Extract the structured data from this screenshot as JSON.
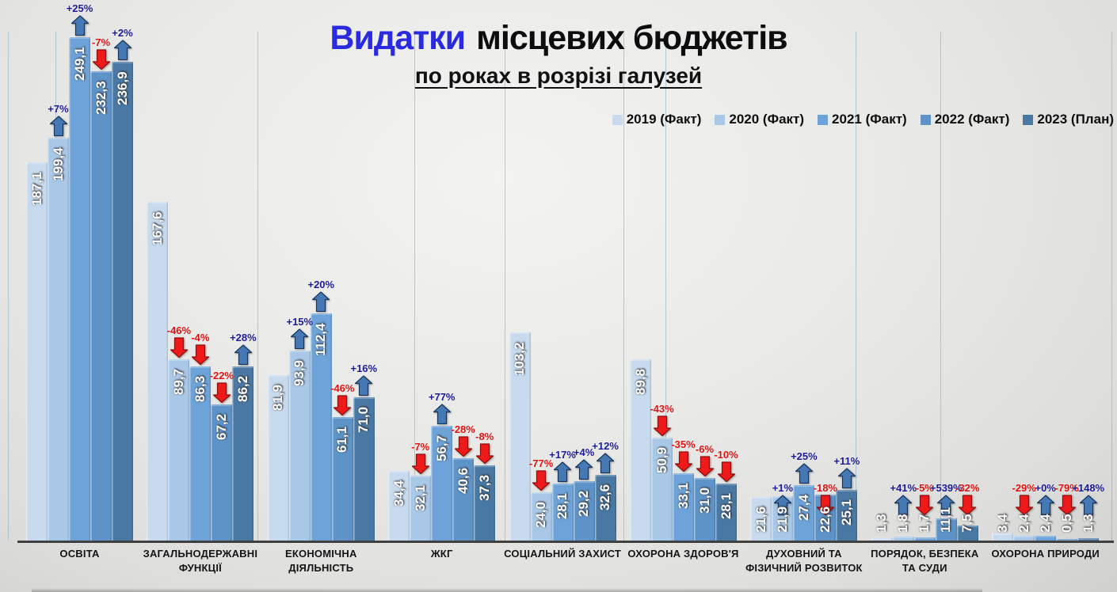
{
  "title": {
    "accent": "Видатки",
    "main": "місцевих бюджетів",
    "subtitle": "по роках в розрізі галузей"
  },
  "title_colors": {
    "accent": "#2a2ae0",
    "main": "#0d0d0d"
  },
  "legend": [
    {
      "label": "2019 (Факт)",
      "color": "#c7daee"
    },
    {
      "label": "2020 (Факт)",
      "color": "#a9c8e8"
    },
    {
      "label": "2021 (Факт)",
      "color": "#6da3d8"
    },
    {
      "label": "2022 (Факт)",
      "color": "#5e93c8"
    },
    {
      "label": "2023 (План)",
      "color": "#4a78a4"
    }
  ],
  "chart_data": {
    "type": "bar",
    "title": "Видатки місцевих бюджетів по роках в розрізі галузей",
    "grid": false,
    "legend_position": "top-right",
    "ylim": [
      0,
      250
    ],
    "categories": [
      "ОСВІТА",
      "ЗАГАЛЬНОДЕРЖАВНІ ФУНКЦІЇ",
      "ЕКОНОМІЧНА ДІЯЛЬНІСТЬ",
      "ЖКГ",
      "СОЦІАЛЬНИЙ ЗАХИСТ",
      "ОХОРОНА ЗДОРОВ'Я",
      "ДУХОВНИЙ ТА ФІЗИЧНИЙ РОЗВИТОК",
      "ПОРЯДОК, БЕЗПЕКА ТА СУДИ",
      "ОХОРОНА ПРИРОДИ"
    ],
    "category_lines": [
      [
        "ОСВІТА"
      ],
      [
        "ЗАГАЛЬНОДЕРЖАВНІ",
        "ФУНКЦІЇ"
      ],
      [
        "ЕКОНОМІЧНА",
        "ДІЯЛЬНІСТЬ"
      ],
      [
        "ЖКГ"
      ],
      [
        "СОЦІАЛЬНИЙ ЗАХИСТ"
      ],
      [
        "ОХОРОНА ЗДОРОВ'Я"
      ],
      [
        "ДУХОВНИЙ ТА",
        "ФІЗИЧНИЙ РОЗВИТОК"
      ],
      [
        "ПОРЯДОК, БЕЗПЕКА",
        "ТА СУДИ"
      ],
      [
        "ОХОРОНА ПРИРОДИ"
      ]
    ],
    "series": [
      {
        "name": "2019 (Факт)",
        "color": "#c7daee",
        "values": [
          187.1,
          167.6,
          81.9,
          34.4,
          103.2,
          89.8,
          21.6,
          1.3,
          3.4
        ],
        "labels": [
          "187,1",
          "167,6",
          "81,9",
          "34,4",
          "103,2",
          "89,8",
          "21,6",
          "1,3",
          "3,4"
        ]
      },
      {
        "name": "2020 (Факт)",
        "color": "#a9c8e8",
        "values": [
          199.4,
          89.7,
          93.9,
          32.1,
          24.0,
          50.9,
          21.9,
          1.8,
          2.4
        ],
        "labels": [
          "199,4",
          "89,7",
          "93,9",
          "32,1",
          "24,0",
          "50,9",
          "21,9",
          "1,8",
          "2,4"
        ],
        "pct": [
          "+7%",
          "-46%",
          "+15%",
          "-7%",
          "-77%",
          "-43%",
          "+1%",
          "+41%",
          "-29%"
        ]
      },
      {
        "name": "2021 (Факт)",
        "color": "#6da3d8",
        "values": [
          249.1,
          86.3,
          112.4,
          56.7,
          28.1,
          33.1,
          27.4,
          1.7,
          2.4
        ],
        "labels": [
          "249,1",
          "86,3",
          "112,4",
          "56,7",
          "28,1",
          "33,1",
          "27,4",
          "1,7",
          "2,4"
        ],
        "pct": [
          "+25%",
          "-4%",
          "+20%",
          "+77%",
          "+17%",
          "-35%",
          "+25%",
          "-5%",
          "+0%"
        ]
      },
      {
        "name": "2022 (Факт)",
        "color": "#5e93c8",
        "values": [
          232.3,
          67.2,
          61.1,
          40.6,
          29.2,
          31.0,
          22.6,
          11.1,
          0.5
        ],
        "labels": [
          "232,3",
          "67,2",
          "61,1",
          "40,6",
          "29,2",
          "31,0",
          "22,6",
          "11,1",
          "0,5"
        ],
        "pct": [
          "-7%",
          "-22%",
          "-46%",
          "-28%",
          "+4%",
          "-6%",
          "-18%",
          "+539%",
          "-79%"
        ]
      },
      {
        "name": "2023 (План)",
        "color": "#4a78a4",
        "values": [
          236.9,
          86.2,
          71.0,
          37.3,
          32.6,
          28.1,
          25.1,
          7.5,
          1.3
        ],
        "labels": [
          "236,9",
          "86,2",
          "71,0",
          "37,3",
          "32,6",
          "28,1",
          "25,1",
          "7,5",
          "1,3"
        ],
        "pct": [
          "+2%",
          "+28%",
          "+16%",
          "-8%",
          "+12%",
          "-10%",
          "+11%",
          "-32%",
          "+148%"
        ]
      }
    ],
    "pct_colors": {
      "up": "#1b1b96",
      "down": "#dc1414"
    },
    "arrow_colors": {
      "up_fill": "#4679b4",
      "up_stroke": "#17375e",
      "down_fill": "#ee1a1a",
      "down_stroke": "#8c1010"
    }
  }
}
